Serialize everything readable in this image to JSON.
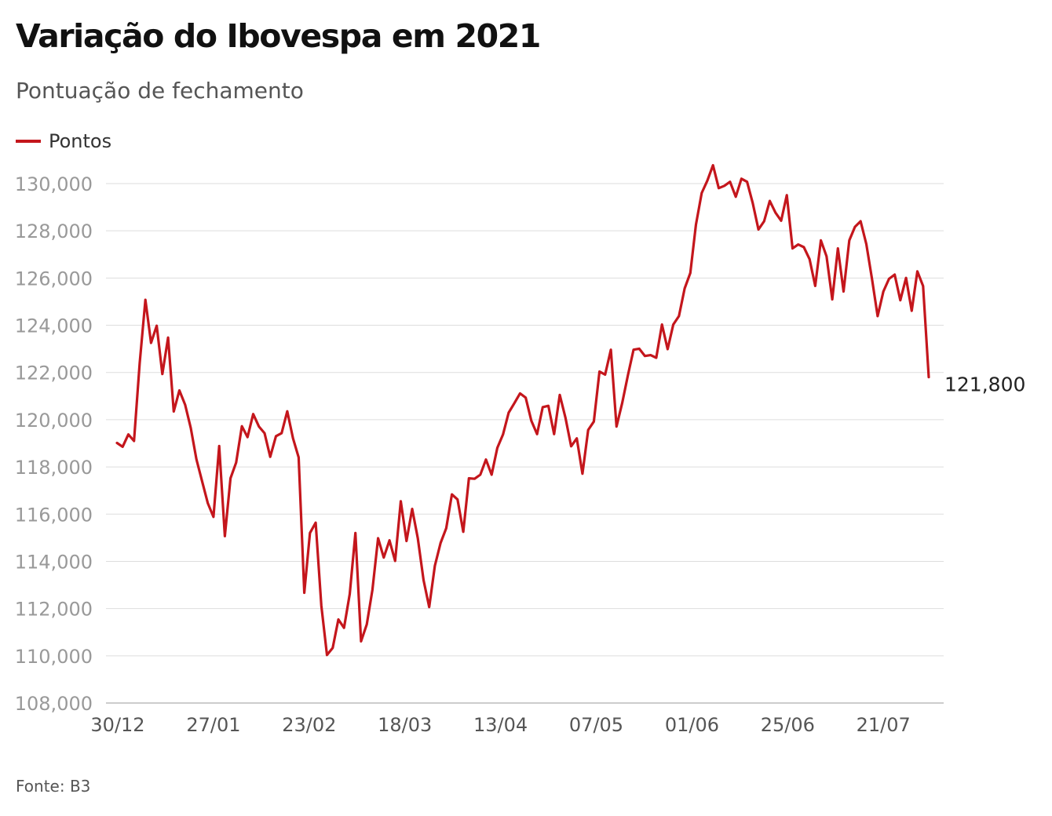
{
  "title": "Variação do Ibovespa em 2021",
  "subtitle": "Pontuação de fechamento",
  "source": "Fonte: B3",
  "colors": {
    "line": "#c4161c",
    "grid": "#dddddd",
    "axis_text": "#999999",
    "dark_axis_text": "#555555"
  },
  "chart_data": {
    "type": "line",
    "title": "Variação do Ibovespa em 2021",
    "subtitle": "Pontuação de fechamento",
    "legend": {
      "position": "top-left"
    },
    "grid": true,
    "y_ticks": [
      108000,
      110000,
      112000,
      114000,
      116000,
      118000,
      120000,
      122000,
      124000,
      126000,
      128000,
      130000
    ],
    "y_tick_labels": [
      "108,000",
      "110,000",
      "112,000",
      "114,000",
      "116,000",
      "118,000",
      "120,000",
      "122,000",
      "124,000",
      "126,000",
      "128,000",
      "130,000"
    ],
    "ylim": [
      108000,
      131000
    ],
    "x_tick_labels": [
      "30/12",
      "27/01",
      "23/02",
      "18/03",
      "13/04",
      "07/05",
      "01/06",
      "25/06",
      "21/07"
    ],
    "end_label": "121,800",
    "series": [
      {
        "name": "Pontos",
        "values": [
          119017,
          118855,
          119376,
          119101,
          122386,
          125077,
          123255,
          123981,
          121933,
          123480,
          120348,
          121241,
          120636,
          119647,
          118321,
          117381,
          116464,
          115882,
          118883,
          115068,
          117518,
          118187,
          119725,
          119261,
          120240,
          119710,
          119429,
          118430,
          119301,
          119428,
          120356,
          119213,
          118405,
          112668,
          115202,
          115636,
          112123,
          110035,
          110335,
          111540,
          111184,
          112620,
          115202,
          110612,
          111331,
          112800,
          114979,
          114160,
          114890,
          114020,
          116549,
          114863,
          116222,
          114976,
          113206,
          112063,
          113813,
          114779,
          115403,
          116837,
          116621,
          115253,
          117518,
          117497,
          117670,
          118313,
          117670,
          118812,
          119371,
          120297,
          120700,
          121115,
          120934,
          119956,
          119388,
          120531,
          120589,
          119388,
          121052,
          120093,
          118874,
          119209,
          117712,
          119564,
          119921,
          122038,
          121910,
          122964,
          119710,
          120700,
          121882,
          122964,
          123007,
          122700,
          122735,
          122624,
          124031,
          122988,
          124031,
          124388,
          125561,
          126216,
          128267,
          129601,
          130126,
          130776,
          129806,
          129906,
          130076,
          129441,
          130207,
          130076,
          129176,
          128057,
          128405,
          129264,
          128767,
          128428,
          129513,
          127256,
          127422,
          127309,
          126801,
          125666,
          127594,
          126922,
          125095,
          127256,
          125429,
          127594,
          128168,
          128405,
          127438,
          125967,
          124388,
          125429,
          125967,
          126146,
          125058,
          126004,
          124612,
          126285,
          125659,
          121800
        ]
      }
    ]
  }
}
